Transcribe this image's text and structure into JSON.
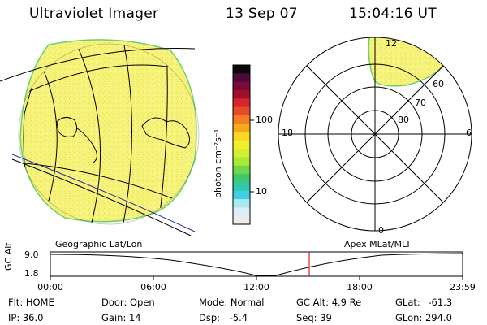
{
  "header": {
    "instrument": "Ultraviolet Imager",
    "date": "13 Sep 07",
    "time": "15:04:16 UT"
  },
  "colorbar": {
    "unit_label": "photon cm⁻²s⁻¹",
    "ticks": [
      "100",
      "10"
    ],
    "colors": [
      "#0a0a0a",
      "#4b0a3a",
      "#7a0a3a",
      "#a0102a",
      "#d8242c",
      "#e84a2c",
      "#f07e22",
      "#f8a818",
      "#f8d820",
      "#f0f030",
      "#d0f030",
      "#a8e838",
      "#70d848",
      "#40c870",
      "#30c8b0",
      "#40d0e0",
      "#a8e8f0",
      "#d8f0f4",
      "#ececec"
    ]
  },
  "left_panel": {
    "caption": "Geographic Lat/Lon",
    "fill_color": "#f6f27a",
    "edge_color": "#6cd06c"
  },
  "right_panel": {
    "caption": "Apex MLat/MLT",
    "mlt_labels": {
      "top": "12",
      "left": "18",
      "right": "6",
      "bottom": "0"
    },
    "lat_labels": [
      "60",
      "70",
      "80"
    ]
  },
  "timeline": {
    "y_axis_label": "GC Alt",
    "y_ticks": [
      "9.0",
      "1.8"
    ],
    "x_ticks": [
      "00:00",
      "06:00",
      "12:00",
      "18:00",
      "23:59"
    ],
    "current_marker_color": "#e02020"
  },
  "status": {
    "flt": {
      "label": "Flt:",
      "value": "HOME"
    },
    "ip": {
      "label": "IP:",
      "value": "36.0"
    },
    "door": {
      "label": "Door:",
      "value": "Open"
    },
    "gain": {
      "label": "Gain:",
      "value": "14"
    },
    "mode": {
      "label": "Mode:",
      "value": "Normal"
    },
    "dsp": {
      "label": "Dsp:",
      "value": "-5.4"
    },
    "gcalt": {
      "label": "GC Alt:",
      "value": "4.9 Re"
    },
    "seq": {
      "label": "Seq:",
      "value": "39"
    },
    "glat": {
      "label": "GLat:",
      "value": "-61.3"
    },
    "glon": {
      "label": "GLon:",
      "value": "294.0"
    }
  }
}
